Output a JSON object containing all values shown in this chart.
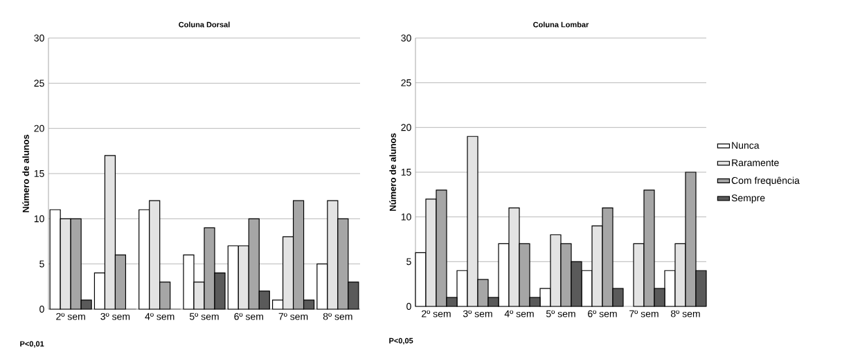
{
  "chart_data": [
    {
      "type": "bar",
      "title": "Coluna Dorsal",
      "ylabel": "Número de alunos",
      "categories": [
        "2º sem",
        "3º sem",
        "4º sem",
        "5º sem",
        "6º sem",
        "7º sem",
        "8º sem"
      ],
      "series": [
        {
          "color": "#ffffff",
          "values": [
            11,
            4,
            11,
            6,
            7,
            1,
            5
          ]
        },
        {
          "color": "#e3e3e3",
          "values": [
            10,
            17,
            12,
            3,
            7,
            8,
            12
          ]
        },
        {
          "color": "#a6a6a6",
          "values": [
            10,
            6,
            3,
            9,
            10,
            12,
            10
          ]
        },
        {
          "color": "#5a5a5a",
          "values": [
            1,
            0,
            0,
            4,
            2,
            1,
            3
          ]
        }
      ],
      "ylim": [
        0,
        30
      ],
      "yticks": [
        0,
        5,
        10,
        15,
        20,
        25,
        30
      ],
      "grid": "y",
      "legend": false,
      "annotations": [
        "P<0,01"
      ]
    },
    {
      "type": "bar",
      "title": "Coluna Lombar",
      "ylabel": "Número de alunos",
      "categories": [
        "2º sem",
        "3º sem",
        "4º sem",
        "5º sem",
        "6º sem",
        "7º sem",
        "8º sem"
      ],
      "series": [
        {
          "name": "Nunca",
          "color": "#ffffff",
          "values": [
            6,
            4,
            7,
            2,
            4,
            0,
            4
          ]
        },
        {
          "name": "Raramente",
          "color": "#e3e3e3",
          "values": [
            12,
            19,
            11,
            8,
            9,
            7,
            7
          ]
        },
        {
          "name": "Com frequência",
          "color": "#a6a6a6",
          "values": [
            13,
            3,
            7,
            7,
            11,
            13,
            15
          ]
        },
        {
          "name": "Sempre",
          "color": "#5a5a5a",
          "values": [
            1,
            1,
            1,
            5,
            2,
            2,
            4
          ]
        }
      ],
      "ylim": [
        0,
        30
      ],
      "yticks": [
        0,
        5,
        10,
        15,
        20,
        25,
        30
      ],
      "grid": "y",
      "legend": "right",
      "annotations": [
        "P<0,05"
      ]
    }
  ]
}
